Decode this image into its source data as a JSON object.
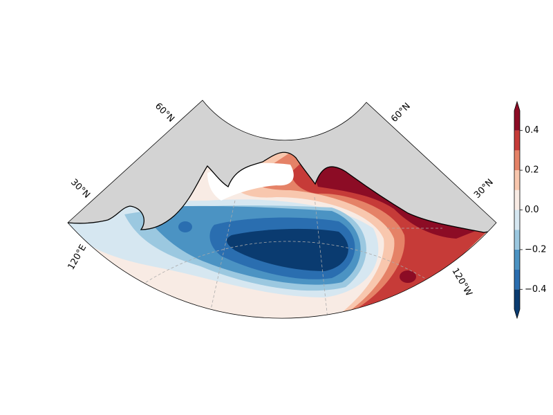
{
  "map": {
    "gridline_labels": [
      "60°N",
      "30°N",
      "120°E",
      "60°N",
      "30°N",
      "120°W"
    ],
    "colorbar": {
      "levels": [
        -0.5,
        -0.4,
        -0.3,
        -0.2,
        -0.1,
        0,
        0.1,
        0.2,
        0.3,
        0.4,
        0.5
      ],
      "colors": [
        "#0a3b70",
        "#2a6eb0",
        "#4b93c3",
        "#9bc8e0",
        "#d6e7f1",
        "#f8ebe4",
        "#f8c7ae",
        "#e58267",
        "#c63b38",
        "#8c0c25"
      ],
      "ticks": [
        {
          "value": -0.4,
          "label": "−0.4"
        },
        {
          "value": -0.2,
          "label": "−0.2"
        },
        {
          "value": 0,
          "label": "0.0"
        },
        0.2,
        0.4
      ]
    }
  }
}
